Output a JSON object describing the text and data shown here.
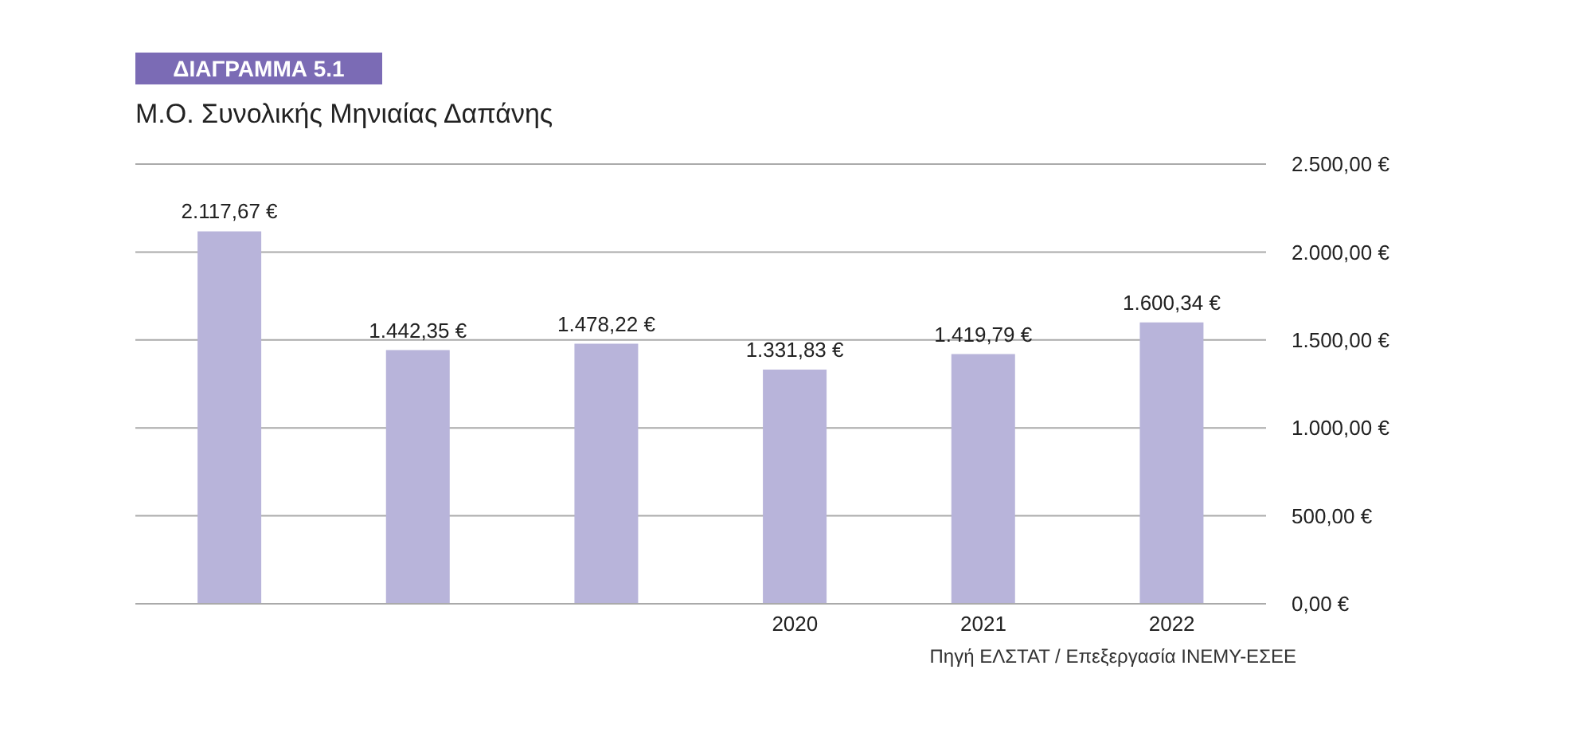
{
  "chart_data": {
    "type": "bar",
    "title": "ΔΙΑΓΡΑΜΜΑ 5.1",
    "subtitle": "Μ.Ο. Συνολικής Μηνιαίας Δαπάνης",
    "categories": [
      null,
      null,
      null,
      "2020",
      "2021",
      "2022"
    ],
    "values": [
      2117.67,
      1442.35,
      1478.22,
      1331.83,
      1419.79,
      1600.34
    ],
    "value_labels": [
      "2.117,67 €",
      "1.442,35 €",
      "1.478,22 €",
      "1.331,83 €",
      "1.419,79 €",
      "1.600,34 €"
    ],
    "color": "#b8b4da",
    "ylim": [
      0,
      2500
    ],
    "yticks": [
      {
        "value": 0,
        "label": "0,00 €"
      },
      {
        "value": 500,
        "label": "500,00 €"
      },
      {
        "value": 1000,
        "label": "1.000,00 €"
      },
      {
        "value": 1500,
        "label": "1.500,00 €"
      },
      {
        "value": 2000,
        "label": "2.000,00 €"
      },
      {
        "value": 2500,
        "label": "2.500,00 €"
      }
    ],
    "grid": "y",
    "legend": false,
    "annotations": [
      "Πηγή ΕΛΣΤΑΤ / Επεξεργασία ΙΝΕΜΥ-ΕΣΕΕ"
    ]
  }
}
